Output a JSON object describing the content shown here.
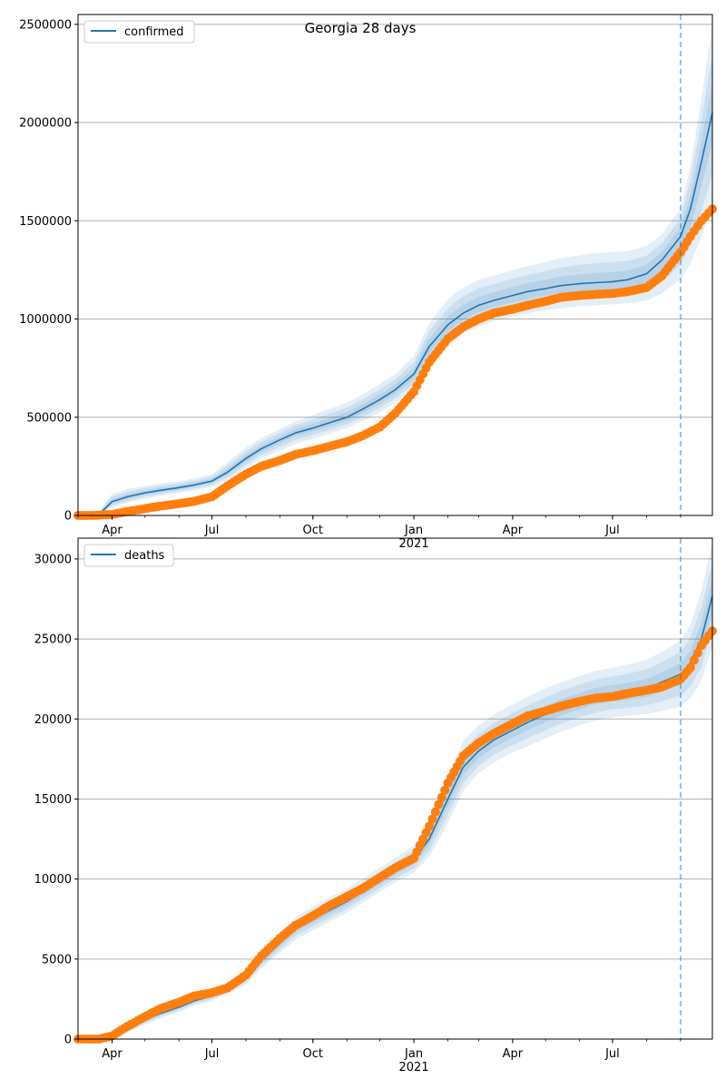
{
  "figure": {
    "title": "Georgia 28 days"
  },
  "colors": {
    "model_line": "#1f77b4",
    "observed": "#ff7f0e",
    "band": "#1f77b4",
    "forecast_line": "#1f77b4",
    "grid": "#b0b0b0"
  },
  "chart_data": [
    {
      "type": "line",
      "title": "Georgia 28 days",
      "xlabel": "",
      "ylabel": "",
      "x_start": "2020-03-01",
      "x_end": "2021-09-30",
      "forecast_start": "2021-09-01",
      "ylim": [
        0,
        2550000
      ],
      "yticks": [
        0,
        500000,
        1000000,
        1500000,
        2000000,
        2500000
      ],
      "ytick_labels": [
        "0",
        "500000",
        "1000000",
        "1500000",
        "2000000",
        "2500000"
      ],
      "xtick_labels": [
        "Apr",
        "Jul",
        "Oct",
        "Jan",
        "Apr",
        "Jul"
      ],
      "xtick_dates": [
        "2020-04-01",
        "2020-07-01",
        "2020-10-01",
        "2021-01-01",
        "2021-04-01",
        "2021-07-01"
      ],
      "xyear_label": "2021",
      "grid": "y",
      "legend": {
        "position": "top-left",
        "entries": [
          "confirmed"
        ]
      },
      "series": [
        {
          "name": "confirmed",
          "kind": "model",
          "x": [
            "2020-03-01",
            "2020-03-10",
            "2020-03-20",
            "2020-04-01",
            "2020-04-15",
            "2020-05-01",
            "2020-05-15",
            "2020-06-01",
            "2020-06-15",
            "2020-07-01",
            "2020-07-15",
            "2020-08-01",
            "2020-08-15",
            "2020-09-01",
            "2020-09-15",
            "2020-10-01",
            "2020-10-15",
            "2020-11-01",
            "2020-11-15",
            "2020-12-01",
            "2020-12-15",
            "2021-01-01",
            "2021-01-15",
            "2021-02-01",
            "2021-02-15",
            "2021-03-01",
            "2021-03-15",
            "2021-04-01",
            "2021-04-15",
            "2021-05-01",
            "2021-05-15",
            "2021-06-01",
            "2021-06-15",
            "2021-07-01",
            "2021-07-15",
            "2021-08-01",
            "2021-08-15",
            "2021-09-01",
            "2021-09-10",
            "2021-09-20",
            "2021-09-30"
          ],
          "y": [
            0,
            0,
            5000,
            70000,
            95000,
            115000,
            128000,
            142000,
            155000,
            175000,
            220000,
            290000,
            340000,
            385000,
            420000,
            445000,
            470000,
            500000,
            540000,
            590000,
            640000,
            720000,
            860000,
            970000,
            1030000,
            1070000,
            1095000,
            1120000,
            1140000,
            1155000,
            1170000,
            1180000,
            1185000,
            1190000,
            1200000,
            1230000,
            1300000,
            1420000,
            1560000,
            1800000,
            2050000
          ],
          "lower": [
            0,
            0,
            0,
            40000,
            65000,
            85000,
            100000,
            115000,
            128000,
            145000,
            180000,
            240000,
            290000,
            330000,
            365000,
            390000,
            415000,
            445000,
            480000,
            525000,
            575000,
            640000,
            760000,
            870000,
            930000,
            960000,
            990000,
            1010000,
            1030000,
            1045000,
            1055000,
            1065000,
            1070000,
            1075000,
            1080000,
            1095000,
            1130000,
            1200000,
            1280000,
            1420000,
            1580000
          ],
          "upper": [
            0,
            0,
            20000,
            110000,
            135000,
            150000,
            162000,
            175000,
            188000,
            210000,
            270000,
            345000,
            395000,
            440000,
            480000,
            510000,
            540000,
            575000,
            615000,
            670000,
            720000,
            810000,
            980000,
            1100000,
            1160000,
            1200000,
            1220000,
            1250000,
            1270000,
            1290000,
            1310000,
            1325000,
            1335000,
            1340000,
            1345000,
            1370000,
            1430000,
            1560000,
            1780000,
            2120000,
            2500000
          ]
        },
        {
          "name": "",
          "kind": "observed",
          "x": [
            "2020-03-01",
            "2020-03-15",
            "2020-04-01",
            "2020-04-15",
            "2020-05-01",
            "2020-05-15",
            "2020-06-01",
            "2020-06-15",
            "2020-07-01",
            "2020-07-15",
            "2020-08-01",
            "2020-08-15",
            "2020-09-01",
            "2020-09-15",
            "2020-10-01",
            "2020-10-15",
            "2020-11-01",
            "2020-11-15",
            "2020-12-01",
            "2020-12-15",
            "2021-01-01",
            "2021-01-15",
            "2021-02-01",
            "2021-02-15",
            "2021-03-01",
            "2021-03-15",
            "2021-04-01",
            "2021-04-15",
            "2021-05-01",
            "2021-05-15",
            "2021-06-01",
            "2021-06-15",
            "2021-07-01",
            "2021-07-15",
            "2021-08-01",
            "2021-08-15",
            "2021-09-01",
            "2021-09-10",
            "2021-09-20",
            "2021-09-30"
          ],
          "y": [
            0,
            0,
            5000,
            20000,
            35000,
            48000,
            60000,
            72000,
            95000,
            150000,
            210000,
            250000,
            280000,
            310000,
            330000,
            350000,
            375000,
            405000,
            450000,
            520000,
            630000,
            780000,
            900000,
            960000,
            1000000,
            1030000,
            1050000,
            1070000,
            1090000,
            1110000,
            1120000,
            1125000,
            1130000,
            1140000,
            1160000,
            1220000,
            1340000,
            1420000,
            1500000,
            1560000
          ]
        }
      ]
    },
    {
      "type": "line",
      "title": "",
      "xlabel": "",
      "ylabel": "",
      "x_start": "2020-03-01",
      "x_end": "2021-09-30",
      "forecast_start": "2021-09-01",
      "ylim": [
        0,
        31300
      ],
      "yticks": [
        0,
        5000,
        10000,
        15000,
        20000,
        25000,
        30000
      ],
      "ytick_labels": [
        "0",
        "5000",
        "10000",
        "15000",
        "20000",
        "25000",
        "30000"
      ],
      "xtick_labels": [
        "Apr",
        "Jul",
        "Oct",
        "Jan",
        "Apr",
        "Jul"
      ],
      "xtick_dates": [
        "2020-04-01",
        "2020-07-01",
        "2020-10-01",
        "2021-01-01",
        "2021-04-01",
        "2021-07-01"
      ],
      "xyear_label": "2021",
      "grid": "y",
      "legend": {
        "position": "top-left",
        "entries": [
          "deaths"
        ]
      },
      "series": [
        {
          "name": "deaths",
          "kind": "model",
          "x": [
            "2020-03-01",
            "2020-03-20",
            "2020-04-01",
            "2020-04-15",
            "2020-05-01",
            "2020-05-15",
            "2020-06-01",
            "2020-06-15",
            "2020-07-01",
            "2020-07-15",
            "2020-08-01",
            "2020-08-15",
            "2020-09-01",
            "2020-09-15",
            "2020-10-01",
            "2020-10-15",
            "2020-11-01",
            "2020-11-15",
            "2020-12-01",
            "2020-12-15",
            "2021-01-01",
            "2021-01-15",
            "2021-02-01",
            "2021-02-15",
            "2021-03-01",
            "2021-03-15",
            "2021-04-01",
            "2021-04-15",
            "2021-05-01",
            "2021-05-15",
            "2021-06-01",
            "2021-06-15",
            "2021-07-01",
            "2021-07-15",
            "2021-08-01",
            "2021-08-15",
            "2021-09-01",
            "2021-09-10",
            "2021-09-20",
            "2021-09-30"
          ],
          "y": [
            0,
            0,
            200,
            600,
            1200,
            1600,
            2000,
            2400,
            2700,
            3100,
            3800,
            4900,
            6000,
            6900,
            7500,
            8000,
            8600,
            9200,
            9900,
            10500,
            11200,
            12500,
            15000,
            17000,
            18000,
            18700,
            19300,
            19800,
            20300,
            20700,
            21100,
            21400,
            21600,
            21700,
            21900,
            22300,
            22800,
            23500,
            25000,
            27700
          ],
          "lower": [
            0,
            0,
            100,
            400,
            900,
            1300,
            1700,
            2100,
            2400,
            2800,
            3400,
            4400,
            5400,
            6200,
            6800,
            7300,
            7900,
            8500,
            9200,
            9800,
            10400,
            11400,
            13500,
            15500,
            16600,
            17300,
            17900,
            18300,
            18800,
            19200,
            19600,
            19900,
            20100,
            20200,
            20300,
            20500,
            20800,
            21300,
            22400,
            24500
          ],
          "upper": [
            0,
            0,
            300,
            800,
            1500,
            1900,
            2300,
            2700,
            3000,
            3400,
            4200,
            5400,
            6600,
            7600,
            8300,
            8800,
            9400,
            10000,
            10700,
            11300,
            12100,
            13700,
            16500,
            18600,
            19600,
            20300,
            20900,
            21400,
            21900,
            22300,
            22700,
            23000,
            23200,
            23400,
            23700,
            24200,
            24900,
            25900,
            28000,
            31000
          ]
        },
        {
          "name": "",
          "kind": "observed",
          "x": [
            "2020-03-01",
            "2020-03-20",
            "2020-04-01",
            "2020-04-15",
            "2020-05-01",
            "2020-05-15",
            "2020-06-01",
            "2020-06-15",
            "2020-07-01",
            "2020-07-15",
            "2020-08-01",
            "2020-08-15",
            "2020-09-01",
            "2020-09-15",
            "2020-10-01",
            "2020-10-15",
            "2020-11-01",
            "2020-11-15",
            "2020-12-01",
            "2020-12-15",
            "2021-01-01",
            "2021-01-15",
            "2021-02-01",
            "2021-02-15",
            "2021-03-01",
            "2021-03-15",
            "2021-04-01",
            "2021-04-15",
            "2021-05-01",
            "2021-05-15",
            "2021-06-01",
            "2021-06-15",
            "2021-07-01",
            "2021-07-15",
            "2021-08-01",
            "2021-08-15",
            "2021-09-01",
            "2021-09-10",
            "2021-09-20",
            "2021-09-30"
          ],
          "y": [
            0,
            0,
            200,
            800,
            1400,
            1900,
            2300,
            2700,
            2900,
            3200,
            4000,
            5200,
            6300,
            7100,
            7700,
            8300,
            8900,
            9400,
            10100,
            10700,
            11300,
            13300,
            16000,
            17700,
            18500,
            19100,
            19700,
            20200,
            20500,
            20800,
            21100,
            21300,
            21400,
            21600,
            21800,
            22000,
            22500,
            23200,
            24600,
            25500
          ]
        }
      ]
    }
  ]
}
